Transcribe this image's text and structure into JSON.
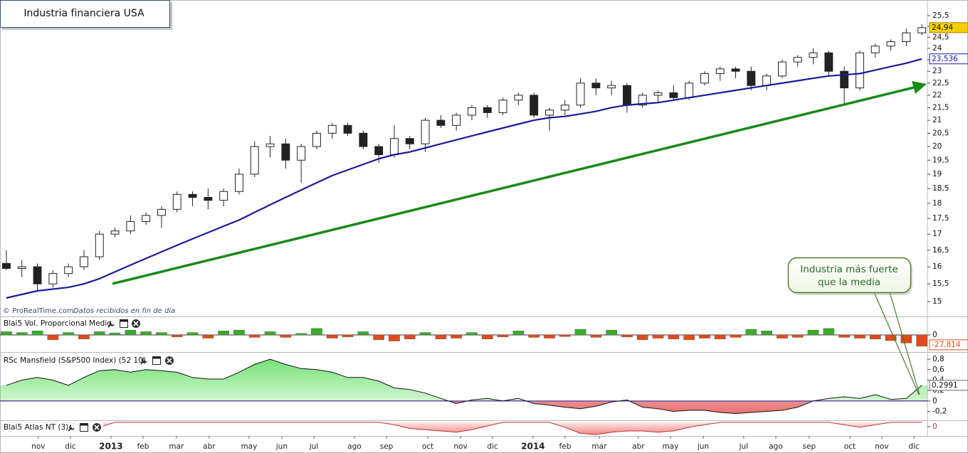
{
  "chart_data": [
    {
      "type": "candlestick",
      "title": "Industria financiera USA",
      "source": "© ProRealTime.com",
      "note": "Datos recibidos en fin de día",
      "callout": [
        "Industria más fuerte",
        "que la media"
      ],
      "x": [
        0,
        1,
        2,
        3,
        4,
        5,
        6,
        7,
        8,
        9,
        10,
        11,
        12,
        13,
        14,
        15,
        16,
        17,
        18,
        19,
        20,
        21,
        22,
        23,
        24,
        25,
        26,
        27,
        28,
        29,
        30,
        31,
        32,
        33,
        34,
        35,
        36,
        37,
        38,
        39,
        40,
        41,
        42,
        43,
        44,
        45,
        46,
        47,
        48,
        49,
        50,
        51,
        52,
        53,
        54,
        55,
        56,
        57,
        58,
        59
      ],
      "open": [
        16.1,
        15.95,
        16.0,
        15.5,
        15.8,
        16.0,
        16.3,
        17.0,
        17.1,
        17.4,
        17.6,
        17.8,
        18.3,
        18.2,
        18.1,
        18.4,
        19.0,
        20.0,
        20.1,
        19.5,
        20.0,
        20.5,
        20.8,
        20.5,
        20.0,
        19.7,
        20.3,
        20.1,
        21.0,
        20.8,
        21.2,
        21.5,
        21.3,
        21.8,
        22.0,
        21.2,
        21.4,
        21.6,
        22.5,
        22.3,
        22.4,
        21.6,
        22.0,
        22.1,
        21.9,
        22.5,
        22.9,
        23.1,
        23.0,
        22.4,
        22.8,
        23.4,
        23.6,
        23.8,
        23.0,
        22.3,
        23.8,
        24.1,
        24.3,
        24.7
      ],
      "high": [
        16.5,
        16.2,
        16.1,
        15.9,
        16.1,
        16.5,
        17.1,
        17.2,
        17.6,
        17.7,
        17.9,
        18.4,
        18.4,
        18.5,
        18.5,
        19.2,
        20.2,
        20.4,
        20.3,
        20.1,
        20.6,
        20.9,
        20.9,
        20.6,
        20.1,
        20.8,
        20.4,
        21.1,
        21.2,
        21.3,
        21.6,
        21.6,
        21.9,
        22.1,
        22.1,
        21.5,
        21.8,
        22.7,
        22.7,
        22.6,
        22.5,
        22.1,
        22.2,
        22.4,
        22.6,
        23.0,
        23.2,
        23.2,
        23.2,
        22.9,
        23.5,
        23.7,
        24.0,
        23.9,
        23.2,
        23.9,
        24.2,
        24.4,
        24.9,
        25.1
      ],
      "low": [
        15.9,
        15.7,
        15.3,
        15.4,
        15.7,
        15.9,
        16.2,
        16.9,
        17.0,
        17.3,
        17.2,
        17.7,
        17.9,
        17.8,
        17.9,
        18.3,
        18.9,
        19.6,
        19.2,
        18.7,
        19.9,
        20.3,
        20.4,
        19.9,
        19.4,
        19.6,
        19.9,
        19.8,
        20.7,
        20.6,
        21.0,
        21.1,
        21.2,
        21.6,
        21.1,
        20.6,
        21.2,
        21.5,
        22.0,
        22.0,
        21.3,
        21.5,
        21.7,
        21.8,
        21.8,
        22.4,
        22.6,
        22.7,
        22.2,
        22.2,
        22.7,
        23.2,
        23.3,
        22.8,
        21.6,
        22.2,
        23.6,
        23.9,
        24.1,
        24.6
      ],
      "close": [
        15.95,
        16.0,
        15.5,
        15.8,
        16.0,
        16.3,
        17.0,
        17.1,
        17.4,
        17.6,
        17.8,
        18.3,
        18.2,
        18.1,
        18.4,
        19.0,
        20.0,
        20.1,
        19.5,
        20.0,
        20.5,
        20.8,
        20.5,
        20.0,
        19.7,
        20.3,
        20.1,
        21.0,
        20.8,
        21.2,
        21.5,
        21.3,
        21.8,
        22.0,
        21.2,
        21.4,
        21.6,
        22.5,
        22.3,
        22.4,
        21.6,
        22.0,
        22.1,
        21.9,
        22.5,
        22.9,
        23.1,
        23.0,
        22.4,
        22.8,
        23.4,
        23.6,
        23.8,
        23.0,
        22.3,
        23.8,
        24.1,
        24.3,
        24.7,
        24.94
      ],
      "last_label": "24,94",
      "up_color": "#ffffff",
      "down_color": "#222222",
      "wick_color": "#222222",
      "last_label_color": "#f5d000",
      "ma": {
        "color": "#1a1a9c",
        "last_label": "23,536",
        "values": [
          15.1,
          15.2,
          15.3,
          15.35,
          15.4,
          15.5,
          15.65,
          15.85,
          16.05,
          16.25,
          16.45,
          16.65,
          16.85,
          17.05,
          17.25,
          17.45,
          17.7,
          17.95,
          18.2,
          18.45,
          18.7,
          18.95,
          19.15,
          19.35,
          19.55,
          19.7,
          19.8,
          19.95,
          20.1,
          20.25,
          20.4,
          20.55,
          20.7,
          20.85,
          21.0,
          21.1,
          21.15,
          21.25,
          21.35,
          21.5,
          21.6,
          21.65,
          21.7,
          21.8,
          21.9,
          22.0,
          22.1,
          22.2,
          22.3,
          22.4,
          22.5,
          22.6,
          22.7,
          22.8,
          22.85,
          22.9,
          23.05,
          23.2,
          23.35,
          23.536
        ]
      },
      "trend_color": "#1a8a1a",
      "log_scale": true,
      "xlim": [
        -0.41,
        59.36
      ],
      "xticks": [
        {
          "value": 2.06,
          "label": "nov"
        },
        {
          "value": 4.13,
          "label": "dic"
        },
        {
          "value": 6.74,
          "label": "2013"
        },
        {
          "value": 8.81,
          "label": "feb"
        },
        {
          "value": 10.96,
          "label": "mar"
        },
        {
          "value": 13.07,
          "label": "abr"
        },
        {
          "value": 15.64,
          "label": "may"
        },
        {
          "value": 17.75,
          "label": "jun"
        },
        {
          "value": 19.82,
          "label": "jul"
        },
        {
          "value": 22.43,
          "label": "ago"
        },
        {
          "value": 24.5,
          "label": "sep"
        },
        {
          "value": 27.16,
          "label": "oct"
        },
        {
          "value": 29.27,
          "label": "nov"
        },
        {
          "value": 31.33,
          "label": "dic"
        },
        {
          "value": 33.94,
          "label": "2014"
        },
        {
          "value": 36.01,
          "label": "feb"
        },
        {
          "value": 38.21,
          "label": "mar"
        },
        {
          "value": 40.73,
          "label": "abr"
        },
        {
          "value": 42.8,
          "label": "may"
        },
        {
          "value": 44.91,
          "label": "jun"
        },
        {
          "value": 47.52,
          "label": "jul"
        },
        {
          "value": 49.59,
          "label": "ago"
        },
        {
          "value": 51.74,
          "label": "sep"
        },
        {
          "value": 54.36,
          "label": "oct"
        },
        {
          "value": 56.42,
          "label": "nov"
        },
        {
          "value": 58.49,
          "label": "dic"
        }
      ],
      "ylim": [
        14.59,
        26.08
      ],
      "yticks": [
        15,
        {
          "value": 15.5,
          "label": "15,5"
        },
        16,
        {
          "value": 16.5,
          "label": "16,5"
        },
        17,
        {
          "value": 17.5,
          "label": "17,5"
        },
        18,
        {
          "value": 18.5,
          "label": "18,5"
        },
        19,
        {
          "value": 19.5,
          "label": "19,5"
        },
        20,
        {
          "value": 20.5,
          "label": "20,5"
        },
        21,
        {
          "value": 21.5,
          "label": "21,5"
        },
        22,
        {
          "value": 22.5,
          "label": "22,5"
        },
        23,
        {
          "value": 23.5,
          "label": "23,5"
        },
        24,
        {
          "value": 24.5,
          "label": "24,5"
        },
        25,
        {
          "value": 25.5,
          "label": "25,5"
        }
      ]
    },
    {
      "type": "bar",
      "title": "Blai5 Vol. Proporcional Medio",
      "values": [
        8,
        6,
        10,
        -12,
        6,
        -10,
        8,
        5,
        12,
        8,
        6,
        -5,
        6,
        -8,
        10,
        12,
        -6,
        8,
        -6,
        4,
        16,
        -8,
        -5,
        8,
        -12,
        -15,
        -10,
        6,
        -10,
        -8,
        6,
        -10,
        -5,
        10,
        -6,
        -8,
        -4,
        14,
        -6,
        12,
        -5,
        -12,
        -8,
        -10,
        -12,
        -8,
        -10,
        -6,
        14,
        10,
        -8,
        -6,
        12,
        16,
        -6,
        -8,
        -10,
        -14,
        -20,
        -27.814
      ],
      "last_label": "-27,814",
      "up_color": "#3aab2a",
      "down_color": "#e04a1a",
      "ylim": [
        -42,
        42
      ],
      "yticks": [
        0
      ]
    },
    {
      "type": "area",
      "title": "RSc Mansfield (S&P500 Index) (52 10)",
      "values": [
        0.3,
        0.4,
        0.45,
        0.4,
        0.3,
        0.45,
        0.58,
        0.6,
        0.55,
        0.6,
        0.58,
        0.55,
        0.45,
        0.42,
        0.42,
        0.55,
        0.7,
        0.8,
        0.7,
        0.62,
        0.6,
        0.55,
        0.45,
        0.45,
        0.38,
        0.25,
        0.22,
        0.15,
        0.05,
        -0.05,
        0.02,
        0.05,
        0,
        0.05,
        -0.05,
        -0.08,
        -0.12,
        -0.15,
        -0.1,
        -0.02,
        0.02,
        -0.12,
        -0.15,
        -0.2,
        -0.18,
        -0.18,
        -0.22,
        -0.24,
        -0.22,
        -0.2,
        -0.18,
        -0.12,
        0,
        0.05,
        0.08,
        0.05,
        0.12,
        0.03,
        0.05,
        0.2991
      ],
      "last_label": "0,2991",
      "color": "#111111",
      "positive_color": "#6ee06e",
      "negative_color": "#e86a6a",
      "zero_color": "#1a1a9c",
      "ylim": [
        -0.37,
        0.91
      ],
      "yticks": [
        {
          "value": 0.8,
          "label": "0,8"
        },
        {
          "value": 0.6,
          "label": "0,6"
        },
        {
          "value": 0.4,
          "label": "0,4"
        },
        {
          "value": 0.2,
          "label": "0,2"
        },
        0,
        {
          "value": -0.2,
          "label": "-0,2"
        }
      ]
    },
    {
      "type": "area",
      "title": "Blai5 Atlas NT (3)",
      "values": [
        0,
        0,
        0,
        0,
        0,
        -0.3,
        -0.4,
        0,
        0,
        0,
        0,
        0,
        0,
        0,
        0,
        0,
        0,
        0,
        0,
        0,
        0,
        0,
        0,
        0,
        0,
        -0.2,
        -0.5,
        -0.6,
        -0.7,
        -0.8,
        -0.6,
        -0.3,
        0,
        0,
        0,
        0,
        -0.4,
        -0.9,
        -1,
        -0.8,
        -0.7,
        -0.7,
        -0.8,
        -0.7,
        -0.4,
        -0.2,
        0,
        0,
        0,
        0,
        0,
        0,
        0,
        0,
        -0.2,
        -0.4,
        -0.2,
        0,
        0,
        0
      ],
      "color": "#c03030",
      "positive_color": "#6ee06e",
      "negative_color": "#f08080",
      "zero_color": "#c03030",
      "ylim": [
        -1.05,
        0.05
      ],
      "yticks": [
        0
      ]
    }
  ]
}
